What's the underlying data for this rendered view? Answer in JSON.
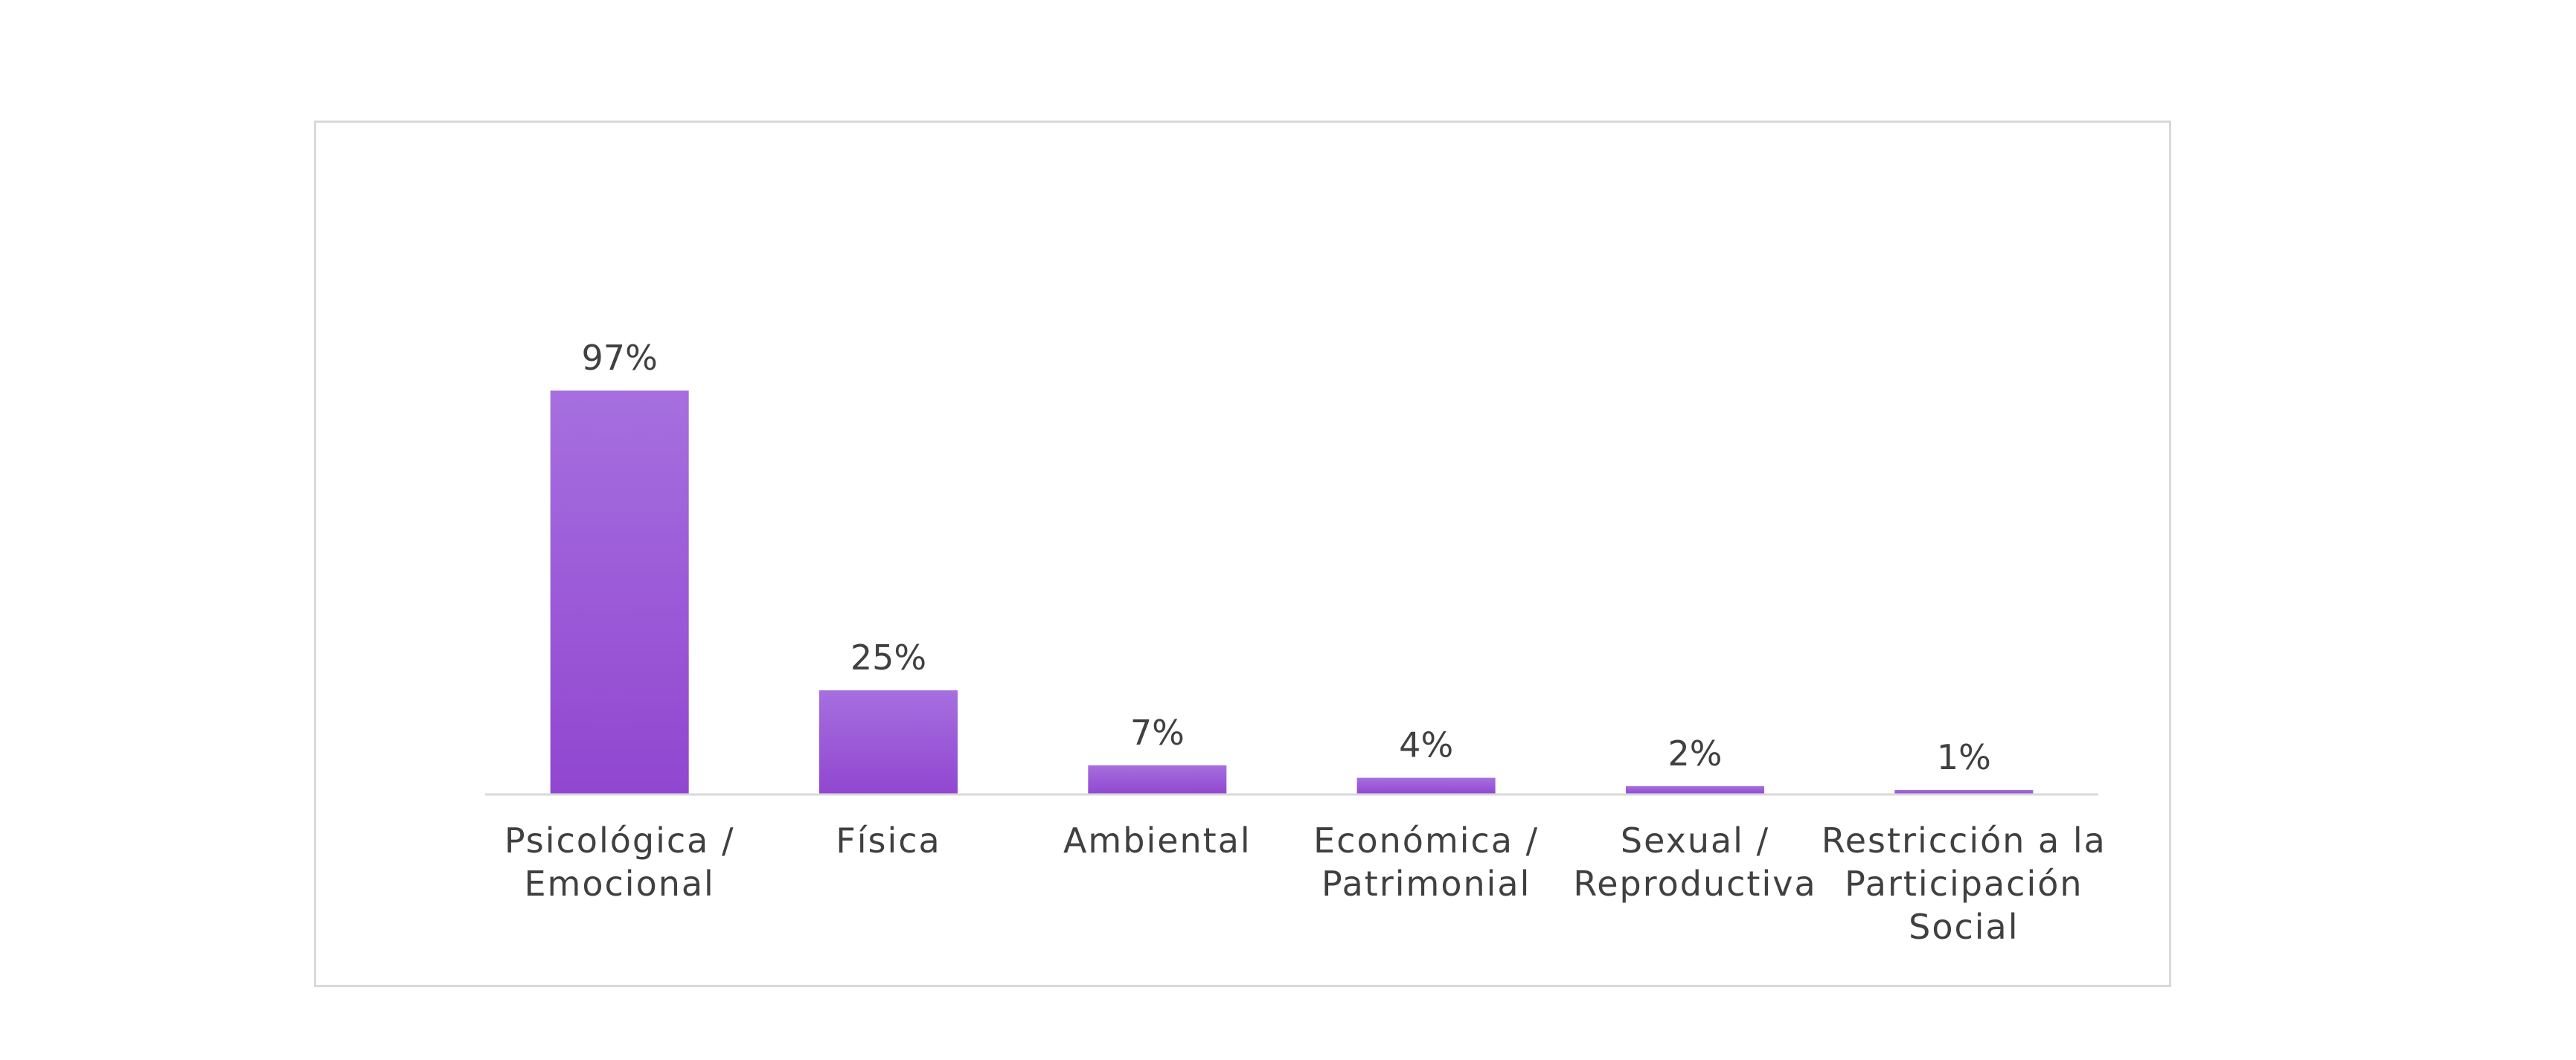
{
  "chart_data": {
    "type": "bar",
    "categories": [
      [
        "Psicológica /",
        "Emocional"
      ],
      [
        "Física"
      ],
      [
        "Ambiental"
      ],
      [
        "Económica /",
        "Patrimonial"
      ],
      [
        "Sexual /",
        "Reproductiva"
      ],
      [
        "Restricción a la",
        "Participación",
        "Social"
      ]
    ],
    "values": [
      97,
      25,
      7,
      4,
      2,
      1
    ],
    "data_labels": [
      "97%",
      "25%",
      "7%",
      "4%",
      "2%",
      "1%"
    ],
    "unit": "%",
    "ylim": [
      0,
      100
    ],
    "grid": false,
    "legend": "none",
    "title": "",
    "xlabel": "",
    "ylabel": "",
    "colors": {
      "bar_top": "#a66fdf",
      "bar_bottom": "#9146d0",
      "axis": "#d9d9d9",
      "text": "#404040",
      "frame": "#d9d9d9"
    }
  }
}
